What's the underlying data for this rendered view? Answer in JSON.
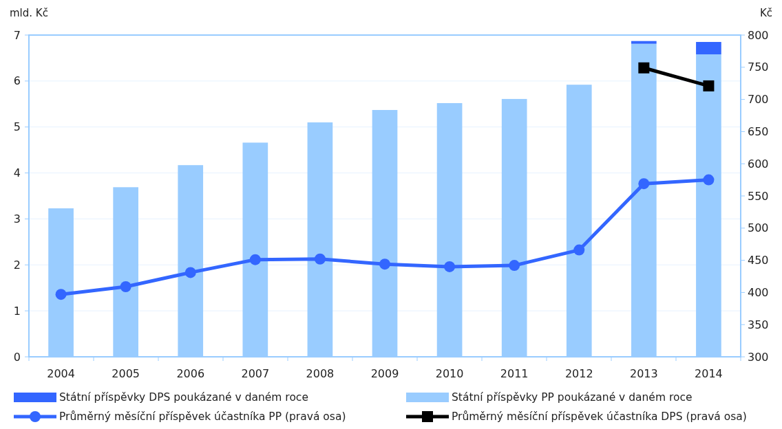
{
  "chart_data": {
    "type": "bar",
    "ylabel": "mld. Kč",
    "y2label": "Kč",
    "categories": [
      "2004",
      "2005",
      "2006",
      "2007",
      "2008",
      "2009",
      "2010",
      "2011",
      "2012",
      "2013",
      "2014"
    ],
    "stacked": true,
    "series": [
      {
        "name": "Státní příspěvky PP poukázané v daném roce",
        "color": "#99ccff",
        "values": [
          3.23,
          3.69,
          4.17,
          4.66,
          5.1,
          5.37,
          5.52,
          5.61,
          5.92,
          6.81,
          6.58
        ]
      },
      {
        "name": "Státní příspěvky DPS poukázané v daném roce",
        "color": "#3366ff",
        "values": [
          null,
          null,
          null,
          null,
          null,
          null,
          null,
          null,
          null,
          0.06,
          0.27
        ]
      },
      {
        "name": "Průměrný měsíční příspěvek účastníka PP (pravá osa)",
        "type": "line",
        "axis": "y2",
        "color": "#3366ff",
        "marker": "circle",
        "values": [
          397,
          409,
          431,
          451,
          452,
          444,
          440,
          442,
          466,
          569,
          575
        ]
      },
      {
        "name": "Průměrný měsíční příspěvek účastníka DPS (pravá osa)",
        "type": "line",
        "axis": "y2",
        "color": "#000000",
        "marker": "square",
        "values": [
          null,
          null,
          null,
          null,
          null,
          null,
          null,
          null,
          null,
          749,
          721
        ]
      }
    ],
    "ylim": [
      0,
      7
    ],
    "yticks": [
      0,
      1,
      2,
      3,
      4,
      5,
      6,
      7
    ],
    "y2lim": [
      300,
      800
    ],
    "y2ticks": [
      300,
      350,
      400,
      450,
      500,
      550,
      600,
      650,
      700,
      750,
      800
    ],
    "grid": "y",
    "legend": "bottom"
  }
}
